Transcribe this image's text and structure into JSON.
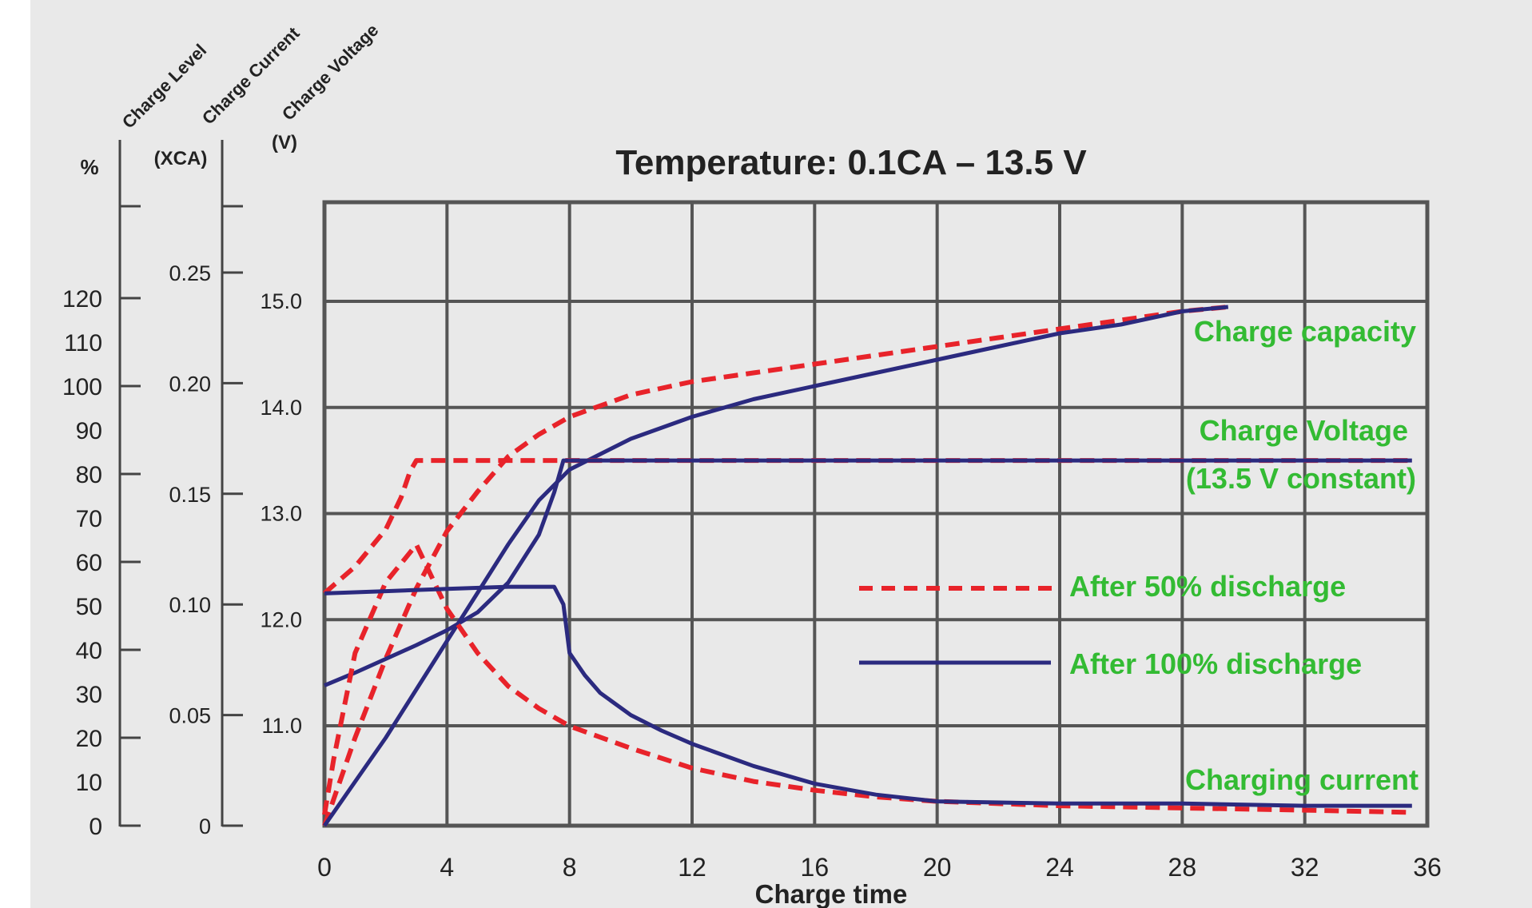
{
  "chart_data": {
    "type": "line",
    "title": "Temperature: 0.1CA – 13.5 V",
    "xlabel": "Charge time",
    "x_ticks": [
      "0",
      "4",
      "8",
      "12",
      "16",
      "20",
      "24",
      "28",
      "32",
      "36"
    ],
    "xlim": [
      0,
      36
    ],
    "grid": true,
    "axes": {
      "charge_level": {
        "name": "Charge Level",
        "unit": "%",
        "ticks": [
          "120",
          "110",
          "100",
          "90",
          "80",
          "70",
          "60",
          "50",
          "40",
          "30",
          "20",
          "10",
          "0"
        ],
        "range": [
          0,
          120
        ]
      },
      "charge_current": {
        "name": "Charge Current",
        "unit": "(XCA)",
        "ticks": [
          "0.25",
          "0.20",
          "0.15",
          "0.10",
          "0.05",
          "0"
        ],
        "range": [
          0,
          0.25
        ]
      },
      "charge_voltage": {
        "name": "Charge Voltage",
        "unit": "(V)",
        "ticks": [
          "15.0",
          "14.0",
          "13.0",
          "12.0",
          "11.0"
        ],
        "range": [
          11.0,
          15.0
        ]
      }
    },
    "legend": {
      "placement": "right",
      "entries": [
        {
          "label": "After 50% discharge",
          "style": "dashed",
          "color": "#e8232a"
        },
        {
          "label": "After 100% discharge",
          "style": "solid",
          "color": "#2b2a7f"
        }
      ]
    },
    "annotations": {
      "charge_capacity": "Charge capacity",
      "charge_voltage_line1": "Charge Voltage",
      "charge_voltage_line2": "(13.5 V constant)",
      "charging_current": "Charging current"
    },
    "series": [
      {
        "curve": "Charge capacity",
        "style": "dashed",
        "axis": "charge_level",
        "x": [
          0,
          1,
          2,
          3,
          4,
          5,
          6,
          7,
          8,
          10,
          12,
          14,
          16,
          18,
          20,
          22,
          24,
          26,
          28,
          29.5
        ],
        "y": [
          0,
          20,
          38,
          54,
          67,
          76,
          84,
          89,
          93,
          98,
          101,
          103,
          105,
          107,
          109,
          111,
          113,
          115,
          117,
          118
        ]
      },
      {
        "curve": "Charge capacity",
        "style": "solid",
        "axis": "charge_level",
        "x": [
          0,
          1,
          2,
          3,
          4,
          5,
          6,
          7,
          8,
          10,
          12,
          14,
          16,
          18,
          20,
          22,
          24,
          26,
          28,
          29.5
        ],
        "y": [
          0,
          10,
          20,
          31,
          42,
          53,
          64,
          74,
          81,
          88,
          93,
          97,
          100,
          103,
          106,
          109,
          112,
          114,
          117,
          118
        ]
      },
      {
        "curve": "Charge Voltage",
        "style": "dashed",
        "axis": "charge_voltage",
        "x": [
          0,
          1,
          2,
          2.5,
          2.8,
          3,
          8,
          16,
          24,
          32,
          35.5
        ],
        "y": [
          12.25,
          12.5,
          12.85,
          13.15,
          13.4,
          13.5,
          13.5,
          13.5,
          13.5,
          13.5,
          13.5
        ]
      },
      {
        "curve": "Charge Voltage",
        "style": "solid",
        "axis": "charge_voltage",
        "x": [
          0,
          1,
          2,
          3,
          4,
          5,
          6,
          7,
          7.5,
          7.8,
          8,
          16,
          24,
          32,
          35.5
        ],
        "y": [
          11.38,
          11.5,
          11.63,
          11.76,
          11.9,
          12.07,
          12.35,
          12.8,
          13.2,
          13.5,
          13.5,
          13.5,
          13.5,
          13.5,
          13.5
        ]
      },
      {
        "curve": "Charging current",
        "style": "dashed",
        "axis": "charge_current",
        "x": [
          0,
          0.3,
          1,
          2,
          3,
          4,
          5,
          6,
          7,
          8,
          10,
          12,
          14,
          16,
          18,
          20,
          24,
          28,
          32,
          35.5
        ],
        "y": [
          0.005,
          0.03,
          0.078,
          0.11,
          0.127,
          0.098,
          0.078,
          0.063,
          0.053,
          0.045,
          0.035,
          0.026,
          0.02,
          0.016,
          0.013,
          0.011,
          0.009,
          0.008,
          0.007,
          0.006
        ]
      },
      {
        "curve": "Charging current",
        "style": "solid",
        "axis": "charge_current",
        "x": [
          0,
          2,
          4,
          6,
          7.5,
          7.8,
          8,
          8.5,
          9,
          10,
          11,
          12,
          14,
          16,
          18,
          20,
          24,
          28,
          32,
          35.5
        ],
        "y": [
          0.105,
          0.106,
          0.107,
          0.108,
          0.108,
          0.1,
          0.078,
          0.068,
          0.06,
          0.05,
          0.043,
          0.037,
          0.027,
          0.019,
          0.014,
          0.011,
          0.01,
          0.01,
          0.009,
          0.009
        ]
      }
    ],
    "colors": {
      "grid": "#555555",
      "axis_text": "#222222",
      "annotation": "#33bb33",
      "background": "#e9e9e9"
    }
  }
}
